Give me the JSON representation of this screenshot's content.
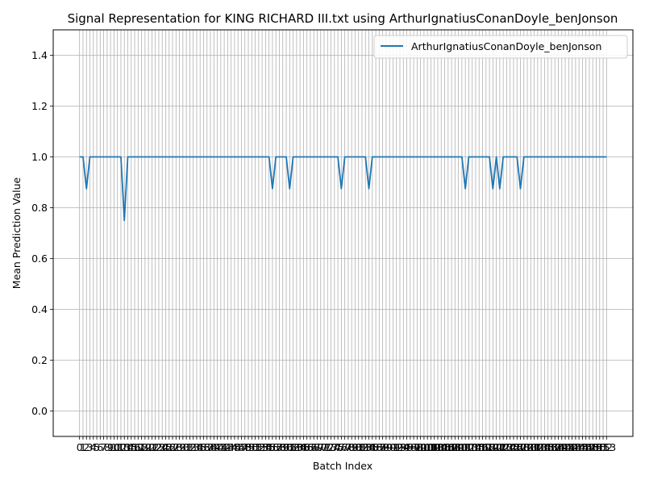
{
  "chart_data": {
    "type": "line",
    "title": "Signal Representation for KING RICHARD III.txt using ArthurIgnatiusConanDoyle_benJonson",
    "xlabel": "Batch Index",
    "ylabel": "Mean Prediction Value",
    "xlim": [
      -7.65,
      160.65
    ],
    "ylim": [
      -0.1,
      1.5
    ],
    "y_ticks": [
      0.0,
      0.2,
      0.4,
      0.6,
      0.8,
      1.0,
      1.2,
      1.4
    ],
    "y_tick_labels": [
      "0.0",
      "0.2",
      "0.4",
      "0.6",
      "0.8",
      "1.0",
      "1.2",
      "1.4"
    ],
    "x_ticks_start": 0,
    "x_ticks_end": 153,
    "grid": true,
    "legend_position": "top-right",
    "series": [
      {
        "name": "ArthurIgnatiusConanDoyle_benJonson",
        "color": "#1f77b4",
        "x_start": 0,
        "x_end": 153,
        "default_value": 1.0,
        "deviations": [
          {
            "x": 2,
            "y": 0.875
          },
          {
            "x": 13,
            "y": 0.75
          },
          {
            "x": 56,
            "y": 0.875
          },
          {
            "x": 61,
            "y": 0.875
          },
          {
            "x": 76,
            "y": 0.875
          },
          {
            "x": 84,
            "y": 0.875
          },
          {
            "x": 112,
            "y": 0.875
          },
          {
            "x": 120,
            "y": 0.875
          },
          {
            "x": 122,
            "y": 0.875
          },
          {
            "x": 128,
            "y": 0.875
          }
        ]
      }
    ]
  }
}
